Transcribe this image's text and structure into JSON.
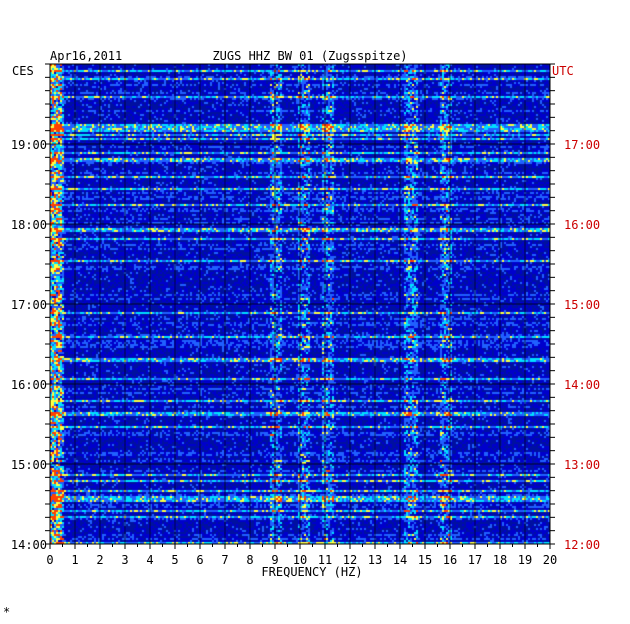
{
  "chart_data": {
    "type": "heatmap",
    "date": "Apr16,2011",
    "title": "ZUGS HHZ BW 01 (Zugsspitze)",
    "left_axis_label": "CES",
    "right_axis_label": "UTC",
    "xlabel": "FREQUENCY (HZ)",
    "xlim": [
      0,
      20
    ],
    "x_ticks": [
      "0",
      "1",
      "2",
      "3",
      "4",
      "5",
      "6",
      "7",
      "8",
      "9",
      "10",
      "11",
      "12",
      "13",
      "14",
      "15",
      "16",
      "17",
      "18",
      "19",
      "20"
    ],
    "left_time_range": [
      "14:00",
      "19:35"
    ],
    "left_ticks": [
      {
        "label": "19:00",
        "hour": 19
      },
      {
        "label": "18:00",
        "hour": 18
      },
      {
        "label": "17:00",
        "hour": 17
      },
      {
        "label": "16:00",
        "hour": 16
      },
      {
        "label": "15:00",
        "hour": 15
      },
      {
        "label": "14:00",
        "hour": 14
      }
    ],
    "right_ticks": [
      {
        "label": "17:00",
        "hour": 17
      },
      {
        "label": "16:00",
        "hour": 16
      },
      {
        "label": "15:00",
        "hour": 15
      },
      {
        "label": "14:00",
        "hour": 14
      },
      {
        "label": "13:00",
        "hour": 13
      },
      {
        "label": "12:00",
        "hour": 12
      }
    ],
    "grid": true,
    "colors": {
      "background": "#0000cc",
      "low": "#0010a0",
      "mid": "#2060ff",
      "high": "#00e0ff",
      "peak": "#ffff40",
      "max": "#ff4000",
      "utc_text": "#cc0000"
    },
    "energy_bands_hz": [
      0.2,
      9.0,
      10.1,
      11.1,
      14.4,
      15.8
    ]
  },
  "footer_mark": "*"
}
